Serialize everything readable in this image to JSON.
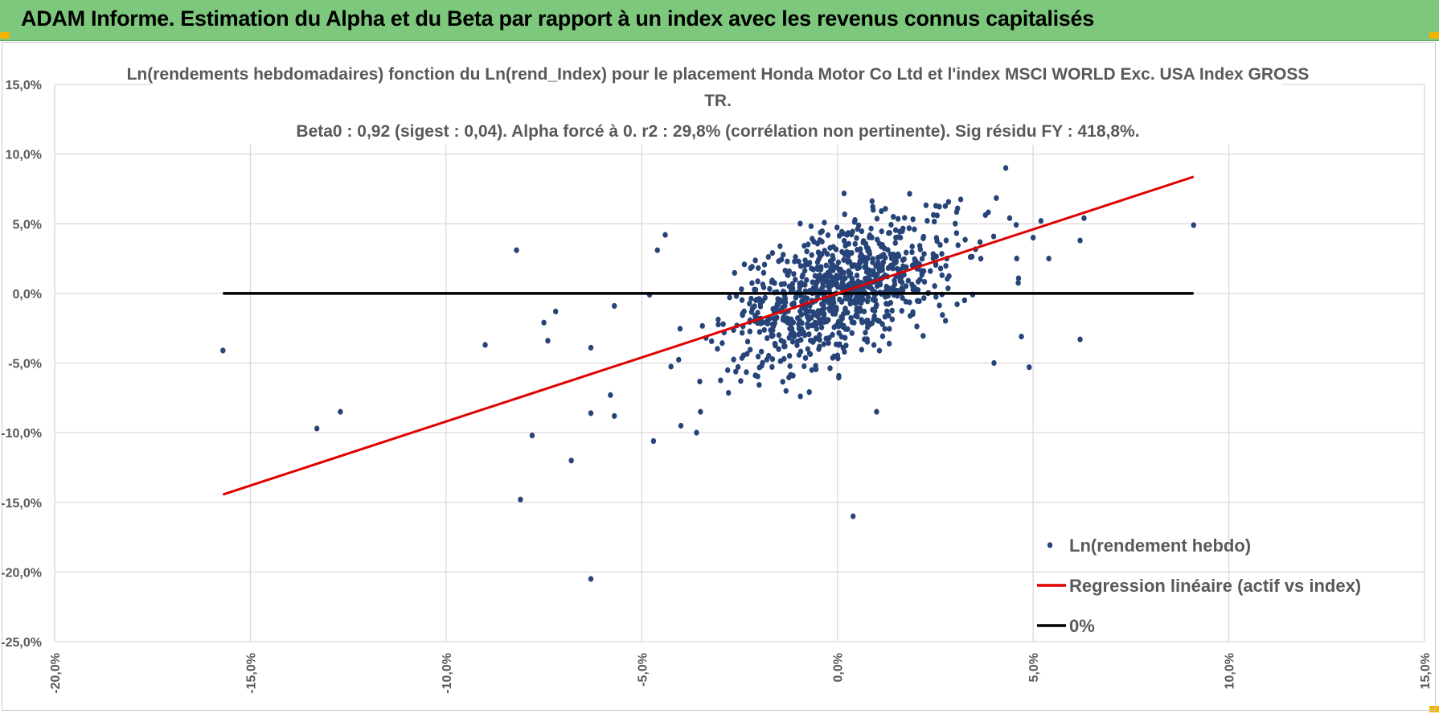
{
  "header": {
    "title": "ADAM Informe. Estimation du Alpha et du Beta par rapport à un index avec les revenus connus capitalisés",
    "background_color": "#7dc87d"
  },
  "chart_data": {
    "type": "scatter",
    "title_lines": [
      "Ln(rendements hebdomadaires) fonction du Ln(rend_Index) pour le placement Honda Motor Co Ltd et l'index MSCI WORLD Exc. USA Index GROSS",
      "TR.",
      "Beta0 : 0,92 (sigest : 0,04).  Alpha forcé à 0. r2 : 29,8% (corrélation non pertinente). Sig résidu FY : 418,8%."
    ],
    "xlabel": "",
    "ylabel": "",
    "xlim": [
      -0.2,
      0.15
    ],
    "ylim": [
      -0.25,
      0.15
    ],
    "x_ticks": [
      -0.2,
      -0.15,
      -0.1,
      -0.05,
      0.0,
      0.05,
      0.1,
      0.15
    ],
    "x_tick_labels": [
      "-20,0%",
      "-15,0%",
      "-10,0%",
      "-5,0%",
      "0,0%",
      "5,0%",
      "10,0%",
      "15,0%"
    ],
    "y_ticks": [
      0.15,
      0.1,
      0.05,
      0.0,
      -0.05,
      -0.1,
      -0.15,
      -0.2,
      -0.25
    ],
    "y_tick_labels": [
      "15,0%",
      "10,0%",
      "5,0%",
      "0,0%",
      "-5,0%",
      "-10,0%",
      "-15,0%",
      "-20,0%",
      "-25,0%"
    ],
    "grid": true,
    "legend_position": "bottom-right",
    "series": [
      {
        "name": "Ln(rendement hebdo)",
        "kind": "scatter",
        "color": "#264478",
        "cluster": {
          "n": 900,
          "x_mean": 0.001,
          "x_sd": 0.0145,
          "beta": 0.92,
          "resid_sd": 0.023,
          "seed": 7
        },
        "points": [
          [
            -0.157,
            -0.041
          ],
          [
            -0.133,
            -0.097
          ],
          [
            -0.127,
            -0.085
          ],
          [
            -0.09,
            -0.037
          ],
          [
            -0.082,
            0.031
          ],
          [
            -0.081,
            -0.148
          ],
          [
            -0.078,
            -0.102
          ],
          [
            -0.075,
            -0.021
          ],
          [
            -0.074,
            -0.034
          ],
          [
            -0.072,
            -0.013
          ],
          [
            -0.068,
            -0.12
          ],
          [
            -0.063,
            -0.205
          ],
          [
            -0.063,
            -0.086
          ],
          [
            -0.063,
            -0.039
          ],
          [
            -0.058,
            -0.073
          ],
          [
            -0.057,
            -0.088
          ],
          [
            -0.057,
            -0.009
          ],
          [
            -0.048,
            -0.001
          ],
          [
            -0.047,
            -0.106
          ],
          [
            -0.046,
            0.031
          ],
          [
            -0.044,
            0.042
          ],
          [
            -0.04,
            -0.095
          ],
          [
            -0.036,
            -0.1
          ],
          [
            -0.035,
            -0.085
          ],
          [
            0.004,
            -0.16
          ],
          [
            0.01,
            -0.085
          ],
          [
            0.04,
            -0.05
          ],
          [
            0.043,
            0.09
          ],
          [
            0.044,
            0.054
          ],
          [
            0.047,
            -0.031
          ],
          [
            0.049,
            -0.053
          ],
          [
            0.05,
            0.04
          ],
          [
            0.052,
            0.052
          ],
          [
            0.054,
            0.025
          ],
          [
            0.062,
            0.038
          ],
          [
            0.062,
            -0.033
          ],
          [
            0.063,
            0.054
          ],
          [
            0.091,
            0.049
          ]
        ]
      },
      {
        "name": "Regression linéaire (actif vs index)",
        "kind": "line",
        "color": "#e00000",
        "points": [
          [
            -0.157,
            -0.1444
          ],
          [
            0.091,
            0.0837
          ]
        ]
      },
      {
        "name": "0%",
        "kind": "line",
        "color": "#000000",
        "points": [
          [
            -0.157,
            0.0
          ],
          [
            0.091,
            0.0
          ]
        ]
      }
    ]
  }
}
